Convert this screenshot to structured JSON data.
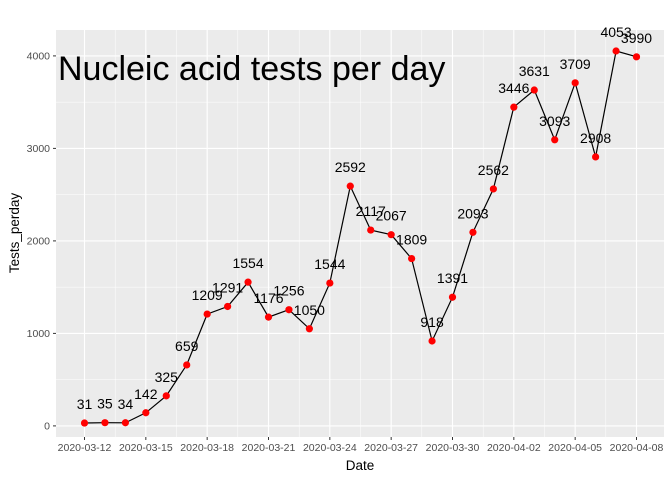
{
  "chart_data": {
    "type": "line",
    "title": "Nucleic acid tests per day",
    "xlabel": "Date",
    "ylabel": "Tests_perday",
    "x": [
      "2020-03-12",
      "2020-03-13",
      "2020-03-14",
      "2020-03-15",
      "2020-03-16",
      "2020-03-17",
      "2020-03-18",
      "2020-03-19",
      "2020-03-20",
      "2020-03-21",
      "2020-03-22",
      "2020-03-23",
      "2020-03-24",
      "2020-03-25",
      "2020-03-26",
      "2020-03-27",
      "2020-03-28",
      "2020-03-29",
      "2020-03-30",
      "2020-03-31",
      "2020-04-01",
      "2020-04-02",
      "2020-04-03",
      "2020-04-04",
      "2020-04-05",
      "2020-04-06",
      "2020-04-07",
      "2020-04-08"
    ],
    "values": [
      31,
      35,
      34,
      142,
      325,
      659,
      1209,
      1291,
      1554,
      1176,
      1256,
      1050,
      1544,
      2592,
      2117,
      2067,
      1809,
      918,
      1391,
      2093,
      2562,
      3446,
      3631,
      3093,
      3709,
      2908,
      4053,
      3990
    ],
    "labels": [
      "31",
      "35",
      "34",
      "142",
      "325",
      "659",
      "1209",
      "1291",
      "1554",
      "1176",
      "1256",
      "1050",
      "1544",
      "2592",
      "2117",
      "2067",
      "1809",
      "918",
      "1391",
      "2093",
      "2562",
      "3446",
      "3631",
      "3093",
      "3709",
      "2908",
      "4053",
      "3990"
    ],
    "x_ticks": [
      "2020-03-12",
      "2020-03-15",
      "2020-03-18",
      "2020-03-21",
      "2020-03-24",
      "2020-03-27",
      "2020-03-30",
      "2020-04-02",
      "2020-04-05",
      "2020-04-08"
    ],
    "y_ticks": [
      "0",
      "1000",
      "2000",
      "3000",
      "4000"
    ],
    "ylim": [
      -120,
      4280
    ],
    "grid": true,
    "legend": "none",
    "colors": {
      "panel": "#ebebeb",
      "grid": "#ffffff",
      "line": "#000000",
      "point": "#ff0000"
    }
  }
}
